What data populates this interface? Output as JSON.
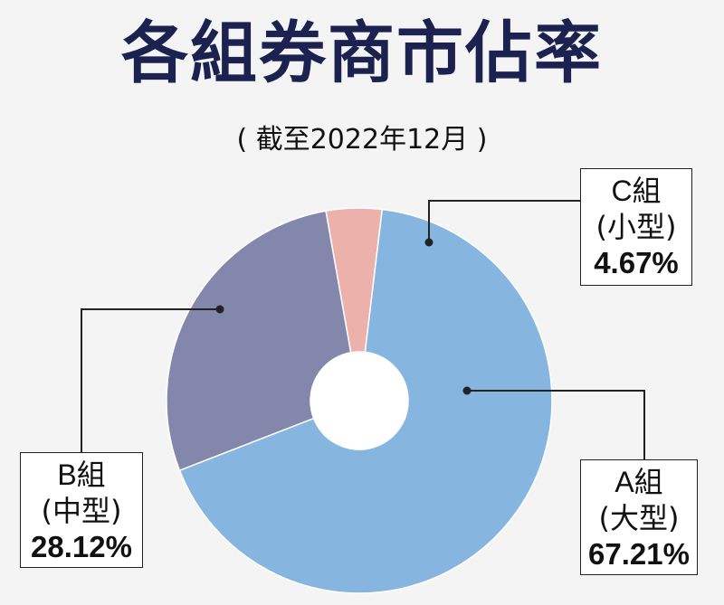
{
  "title": "各組券商市佔率",
  "subtitle": "( 截至2022年12月 )",
  "chart_data": {
    "type": "pie",
    "title": "各組券商市佔率",
    "subtitle": "( 截至2022年12月 )",
    "slices": [
      {
        "group": "A組",
        "type": "(大型)",
        "value_label": "67.21%",
        "value": 67.21,
        "color": "#86b6df"
      },
      {
        "group": "B組",
        "type": "(中型)",
        "value_label": "28.12%",
        "value": 28.12,
        "color": "#8487ac"
      },
      {
        "group": "C組",
        "type": "(小型)",
        "value_label": "4.67%",
        "value": 4.67,
        "color": "#ecb1ab"
      }
    ]
  }
}
